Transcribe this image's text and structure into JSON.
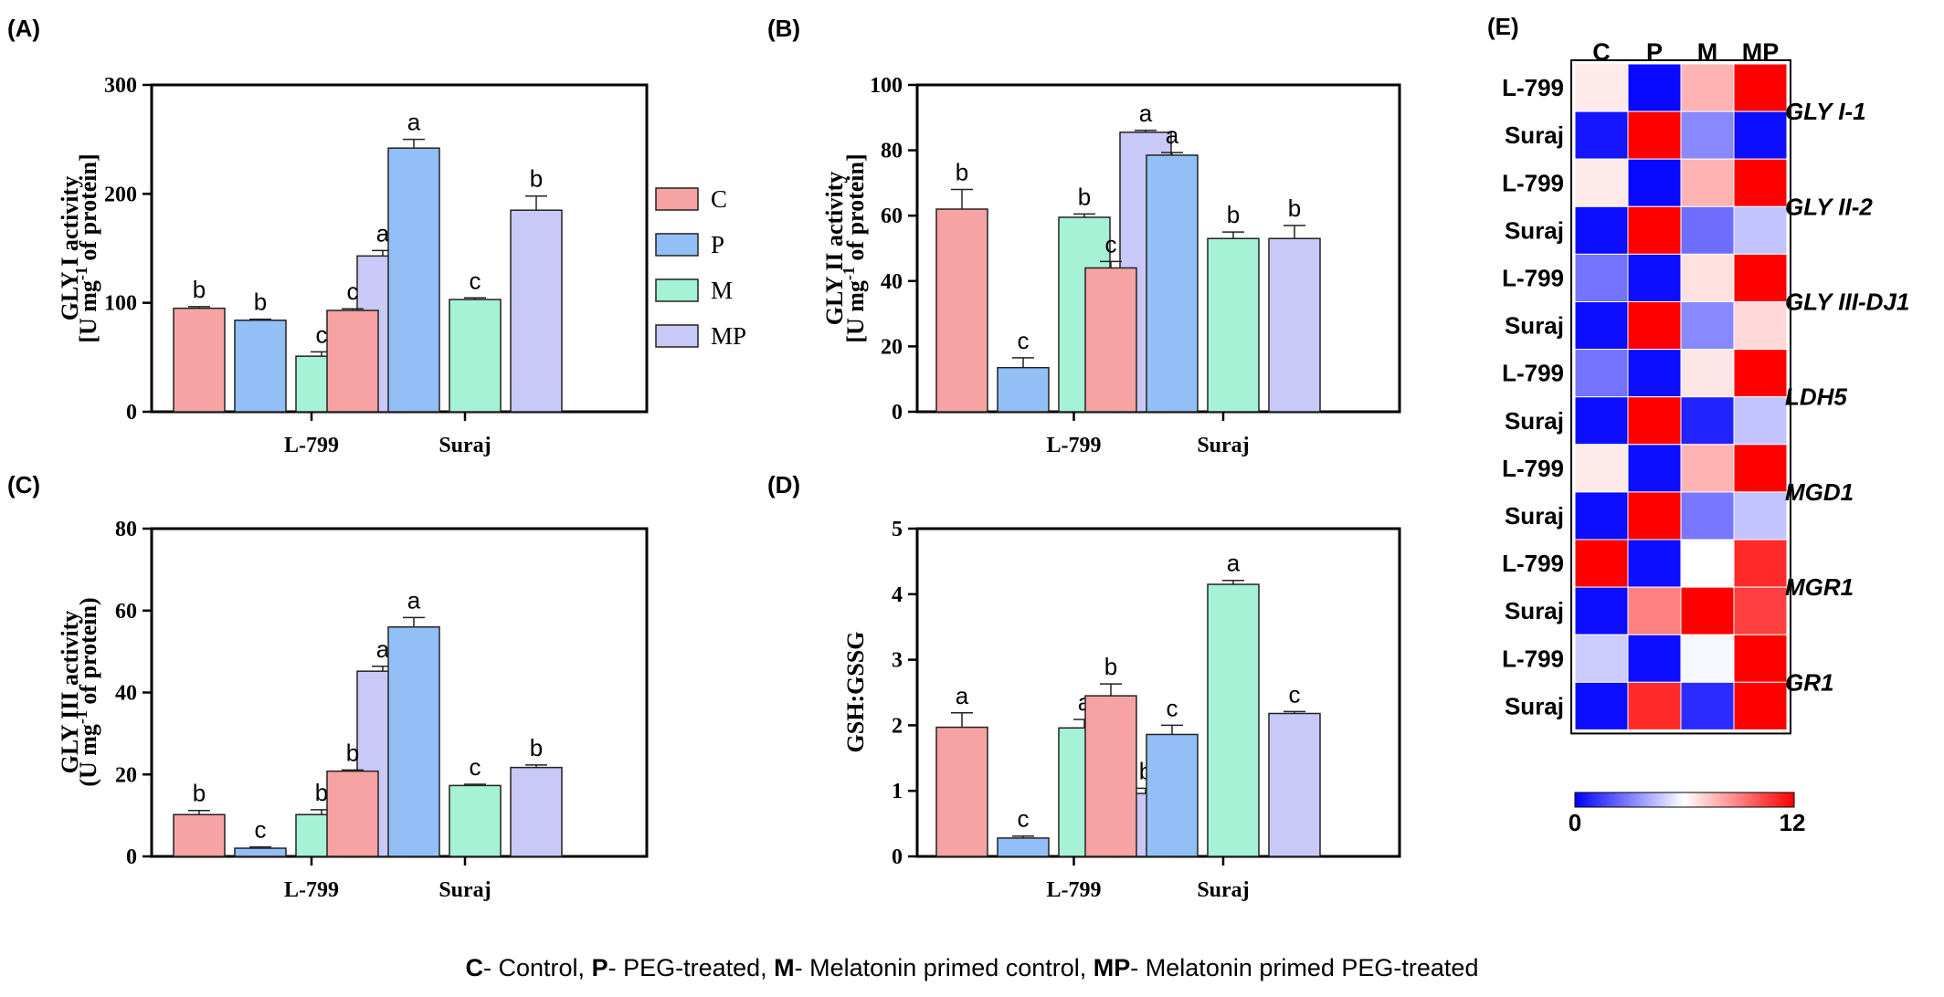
{
  "colors": {
    "C": "#f7a3a3",
    "P": "#93bff7",
    "M": "#a6f2d6",
    "MP": "#c9c9f7",
    "heat_low": "#0000ff",
    "heat_mid": "#ffffff",
    "heat_high": "#ff0000"
  },
  "legend": {
    "entries": [
      "C",
      "P",
      "M",
      "MP"
    ]
  },
  "caption": {
    "c_key": "C",
    "c_text": "- Control, ",
    "p_key": "P",
    "p_text": "- PEG-treated, ",
    "m_key": "M",
    "m_text": "- Melatonin primed control, ",
    "mp_key": "MP",
    "mp_text": "- Melatonin primed PEG-treated"
  },
  "chart_data": [
    {
      "panel": "(A)",
      "type": "bar",
      "ylabel_line1": "GLY I activity",
      "ylabel_line2": "[U mg-1 of protein]",
      "categories": [
        "L-799",
        "Suraj"
      ],
      "ylim": [
        0,
        300
      ],
      "yticks": [
        0,
        100,
        200,
        300
      ],
      "series": [
        {
          "name": "C",
          "values": [
            95,
            93
          ],
          "errors": [
            1.5,
            1.5
          ],
          "letters": [
            "b",
            "c"
          ]
        },
        {
          "name": "P",
          "values": [
            84,
            242
          ],
          "errors": [
            1,
            8
          ],
          "letters": [
            "b",
            "a"
          ]
        },
        {
          "name": "M",
          "values": [
            51,
            103
          ],
          "errors": [
            4,
            1.5
          ],
          "letters": [
            "c",
            "c"
          ]
        },
        {
          "name": "MP",
          "values": [
            143,
            185
          ],
          "errors": [
            5,
            13
          ],
          "letters": [
            "a",
            "b"
          ]
        }
      ]
    },
    {
      "panel": "(B)",
      "type": "bar",
      "ylabel_line1": "GLY II activity",
      "ylabel_line2": "[U mg-1 of protein]",
      "categories": [
        "L-799",
        "Suraj"
      ],
      "ylim": [
        0,
        100
      ],
      "yticks": [
        0,
        20,
        40,
        60,
        80,
        100
      ],
      "series": [
        {
          "name": "C",
          "values": [
            62,
            44
          ],
          "errors": [
            6,
            2
          ],
          "letters": [
            "b",
            "c"
          ]
        },
        {
          "name": "P",
          "values": [
            13.5,
            78.5
          ],
          "errors": [
            3,
            0.8
          ],
          "letters": [
            "c",
            "a"
          ]
        },
        {
          "name": "M",
          "values": [
            59.5,
            53
          ],
          "errors": [
            1,
            2
          ],
          "letters": [
            "b",
            "b"
          ]
        },
        {
          "name": "MP",
          "values": [
            85.5,
            53
          ],
          "errors": [
            0.6,
            4
          ],
          "letters": [
            "a",
            "b"
          ]
        }
      ]
    },
    {
      "panel": "(C)",
      "type": "bar",
      "ylabel_line1": "GLY III activity",
      "ylabel_line2": "(U mg-1 of protein)",
      "categories": [
        "L-799",
        "Suraj"
      ],
      "ylim": [
        0,
        80
      ],
      "yticks": [
        0,
        20,
        40,
        60,
        80
      ],
      "series": [
        {
          "name": "C",
          "values": [
            10.2,
            20.8
          ],
          "errors": [
            1,
            0.3
          ],
          "letters": [
            "b",
            "b"
          ]
        },
        {
          "name": "P",
          "values": [
            2,
            56
          ],
          "errors": [
            0.3,
            2.3
          ],
          "letters": [
            "c",
            "a"
          ]
        },
        {
          "name": "M",
          "values": [
            10.2,
            17.3
          ],
          "errors": [
            1.2,
            0.3
          ],
          "letters": [
            "b",
            "c"
          ]
        },
        {
          "name": "MP",
          "values": [
            45.2,
            21.7
          ],
          "errors": [
            1.2,
            0.6
          ],
          "letters": [
            "a",
            "b"
          ]
        }
      ]
    },
    {
      "panel": "(D)",
      "type": "bar",
      "ylabel_line1": "GSH:GSSG",
      "ylabel_line2": "",
      "categories": [
        "L-799",
        "Suraj"
      ],
      "ylim": [
        0,
        5
      ],
      "yticks": [
        0,
        1,
        2,
        3,
        4,
        5
      ],
      "series": [
        {
          "name": "C",
          "values": [
            1.97,
            2.45
          ],
          "errors": [
            0.22,
            0.18
          ],
          "letters": [
            "a",
            "b"
          ]
        },
        {
          "name": "P",
          "values": [
            0.28,
            1.86
          ],
          "errors": [
            0.03,
            0.14
          ],
          "letters": [
            "c",
            "c"
          ]
        },
        {
          "name": "M",
          "values": [
            1.96,
            4.15
          ],
          "errors": [
            0.13,
            0.06
          ],
          "letters": [
            "a",
            "a"
          ]
        },
        {
          "name": "MP",
          "values": [
            0.96,
            2.18
          ],
          "errors": [
            0.08,
            0.03
          ],
          "letters": [
            "b",
            "c"
          ]
        }
      ]
    },
    {
      "panel": "(E)",
      "type": "heatmap",
      "columns": [
        "C",
        "P",
        "M",
        "MP"
      ],
      "genes": [
        "GLY I-1",
        "GLY II-2",
        "GLY III-DJ1",
        "LDH5",
        "MGD1",
        "MGR1",
        "GR1"
      ],
      "rows": [
        {
          "label": "L-799",
          "values": [
            6.5,
            0.2,
            7.8,
            12
          ]
        },
        {
          "label": "Suraj",
          "values": [
            0.5,
            12,
            3.2,
            0.3
          ]
        },
        {
          "label": "L-799",
          "values": [
            6.5,
            0.2,
            7.8,
            12
          ]
        },
        {
          "label": "Suraj",
          "values": [
            0.3,
            12,
            2.6,
            4.6
          ]
        },
        {
          "label": "L-799",
          "values": [
            2.7,
            0.3,
            6.7,
            12
          ]
        },
        {
          "label": "Suraj",
          "values": [
            0.3,
            12,
            3.2,
            6.9
          ]
        },
        {
          "label": "L-799",
          "values": [
            2.7,
            0.3,
            6.6,
            12
          ]
        },
        {
          "label": "Suraj",
          "values": [
            0.3,
            12,
            0.8,
            4.6
          ]
        },
        {
          "label": "L-799",
          "values": [
            6.5,
            0.3,
            7.8,
            12
          ]
        },
        {
          "label": "Suraj",
          "values": [
            0.3,
            12,
            2.8,
            4.6
          ]
        },
        {
          "label": "L-799",
          "values": [
            12,
            0.3,
            6,
            11
          ]
        },
        {
          "label": "Suraj",
          "values": [
            0.3,
            9,
            12,
            10.5
          ]
        },
        {
          "label": "L-799",
          "values": [
            4.8,
            0.3,
            5.8,
            12
          ]
        },
        {
          "label": "Suraj",
          "values": [
            0.3,
            11,
            1,
            12
          ]
        }
      ],
      "colorbar": {
        "min": 0,
        "max": 12,
        "min_label": "0",
        "max_label": "12"
      }
    }
  ]
}
